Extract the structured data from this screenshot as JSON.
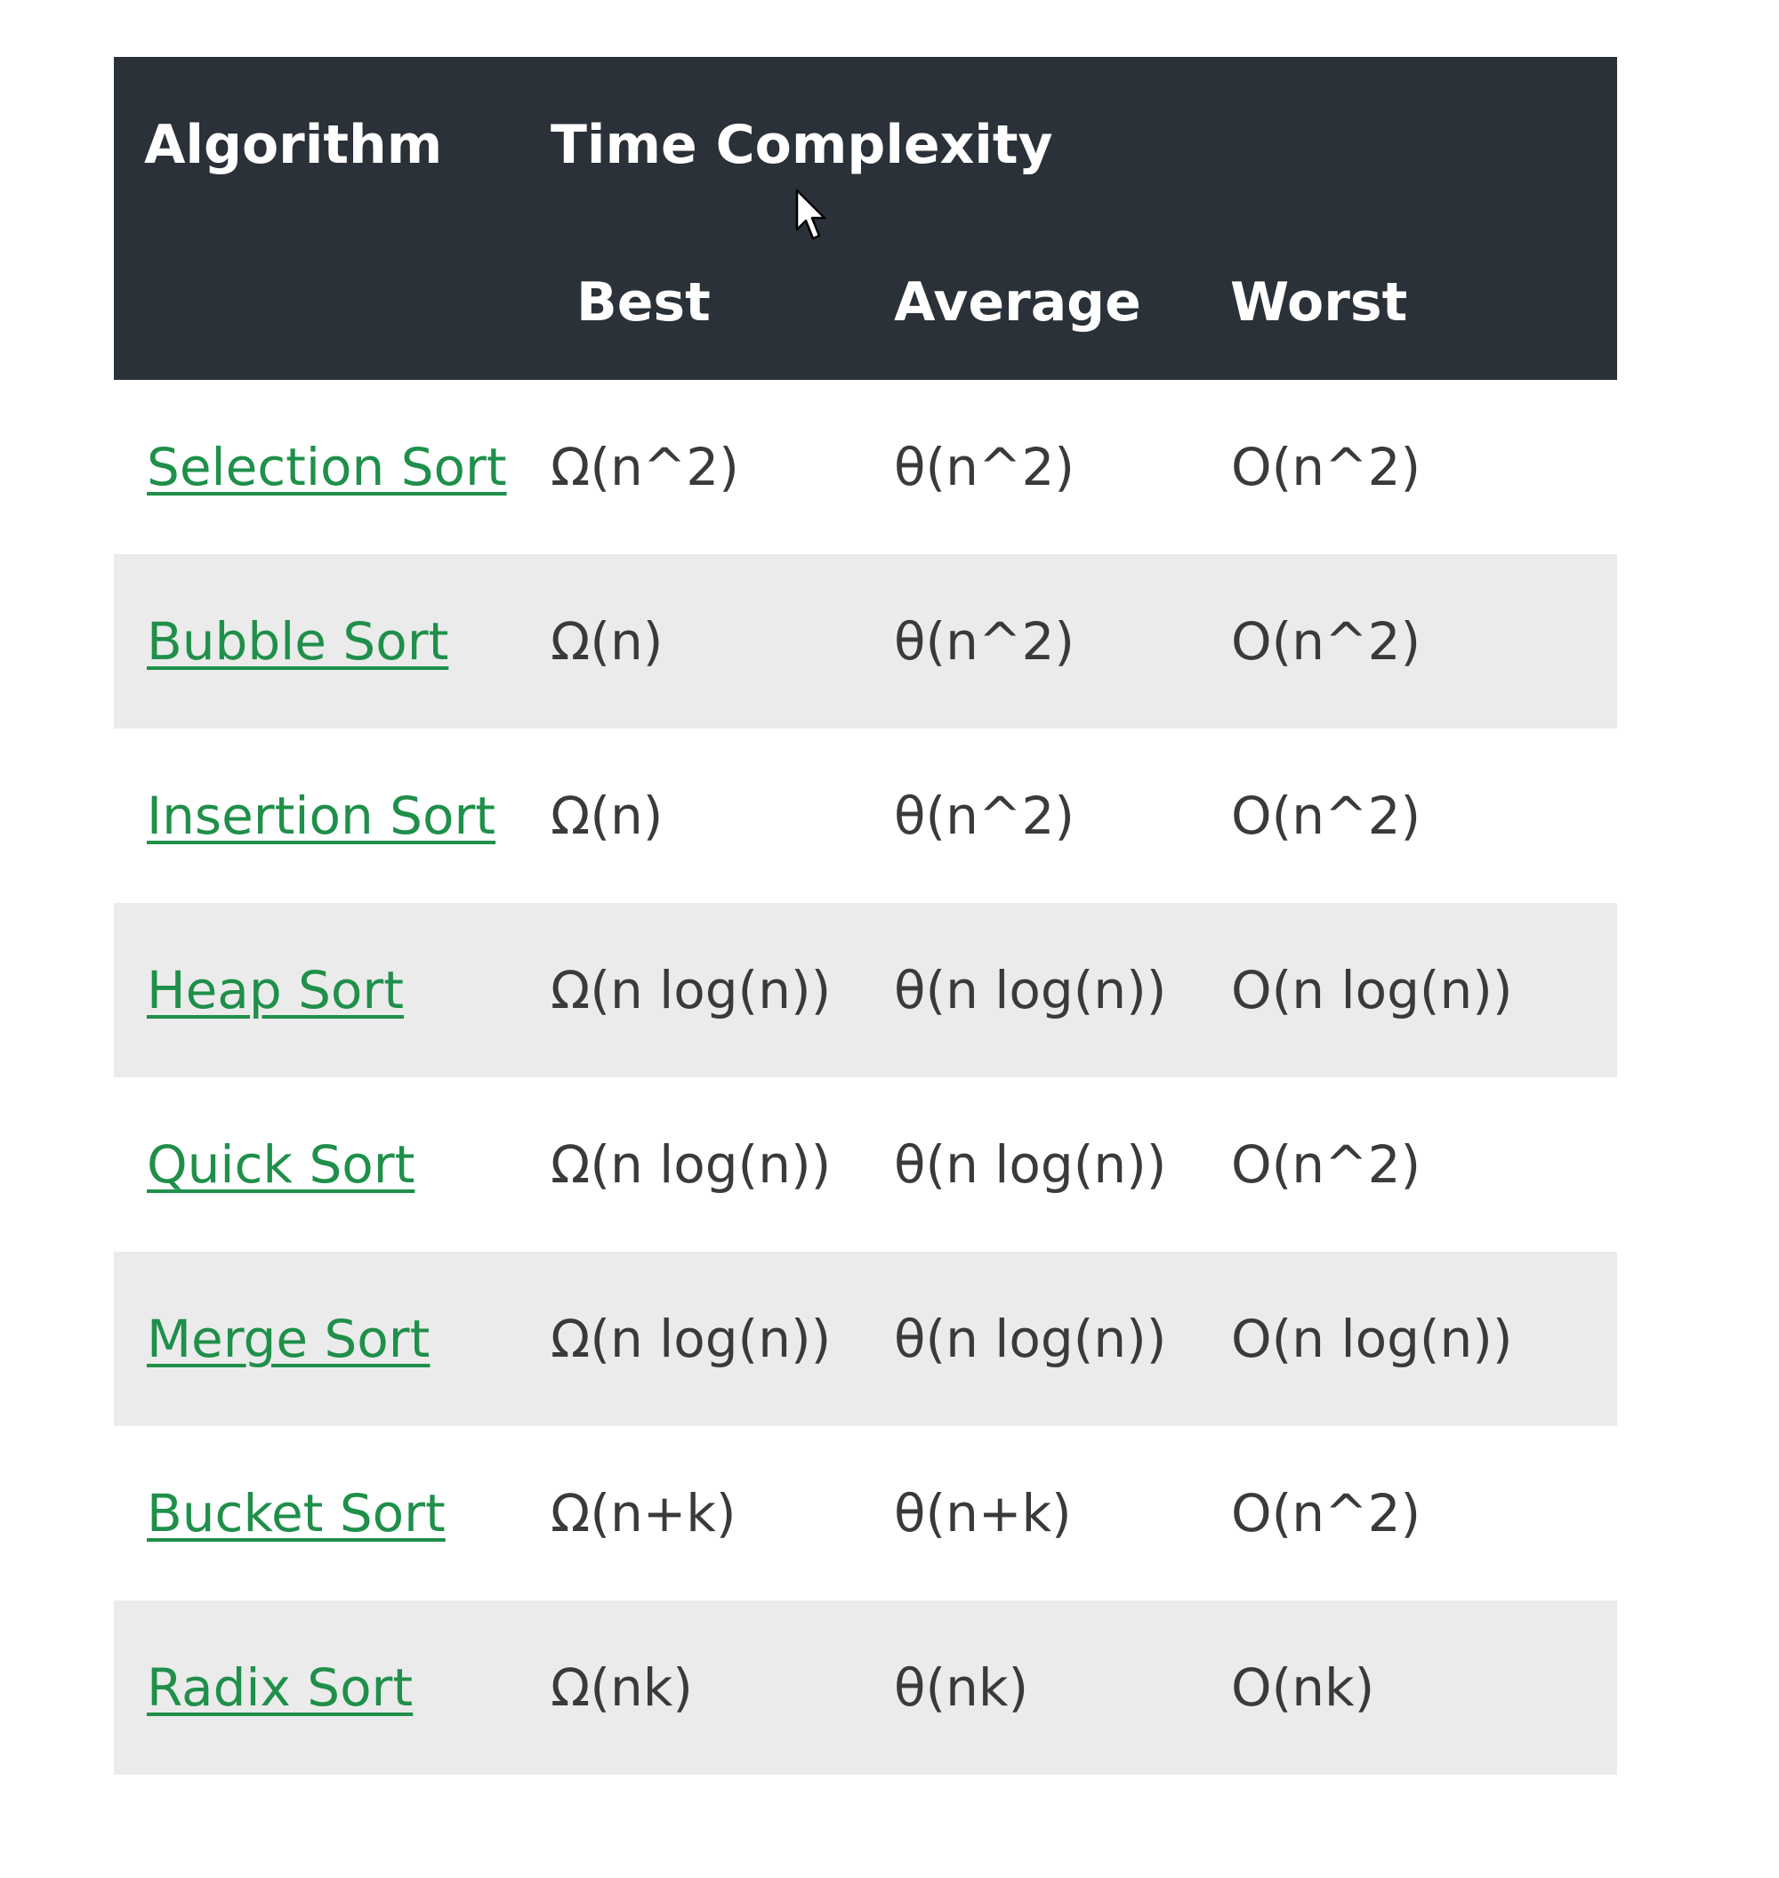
{
  "table": {
    "headers": {
      "algorithm": "Algorithm",
      "time_complexity": "Time Complexity",
      "best": "Best",
      "average": "Average",
      "worst": "Worst"
    },
    "rows": [
      {
        "name": "Selection Sort",
        "best": "Ω(n^2)",
        "average": "θ(n^2)",
        "worst": "O(n^2)"
      },
      {
        "name": "Bubble Sort",
        "best": "Ω(n)",
        "average": "θ(n^2)",
        "worst": "O(n^2)"
      },
      {
        "name": "Insertion Sort",
        "best": "Ω(n)",
        "average": "θ(n^2)",
        "worst": "O(n^2)"
      },
      {
        "name": "Heap Sort",
        "best": "Ω(n log(n))",
        "average": "θ(n log(n))",
        "worst": "O(n log(n))"
      },
      {
        "name": "Quick Sort",
        "best": "Ω(n log(n))",
        "average": "θ(n log(n))",
        "worst": "O(n^2)"
      },
      {
        "name": "Merge Sort",
        "best": "Ω(n log(n))",
        "average": "θ(n log(n))",
        "worst": "O(n log(n))"
      },
      {
        "name": "Bucket Sort",
        "best": "Ω(n+k)",
        "average": "θ(n+k)",
        "worst": "O(n^2)"
      },
      {
        "name": "Radix Sort",
        "best": "Ω(nk)",
        "average": "θ(nk)",
        "worst": "O(nk)"
      }
    ]
  },
  "colors": {
    "header_bg": "#2a3138",
    "link": "#1f8f4a",
    "row_alt_bg": "#ebebeb"
  },
  "cursor_icon": "mouse-pointer-icon"
}
